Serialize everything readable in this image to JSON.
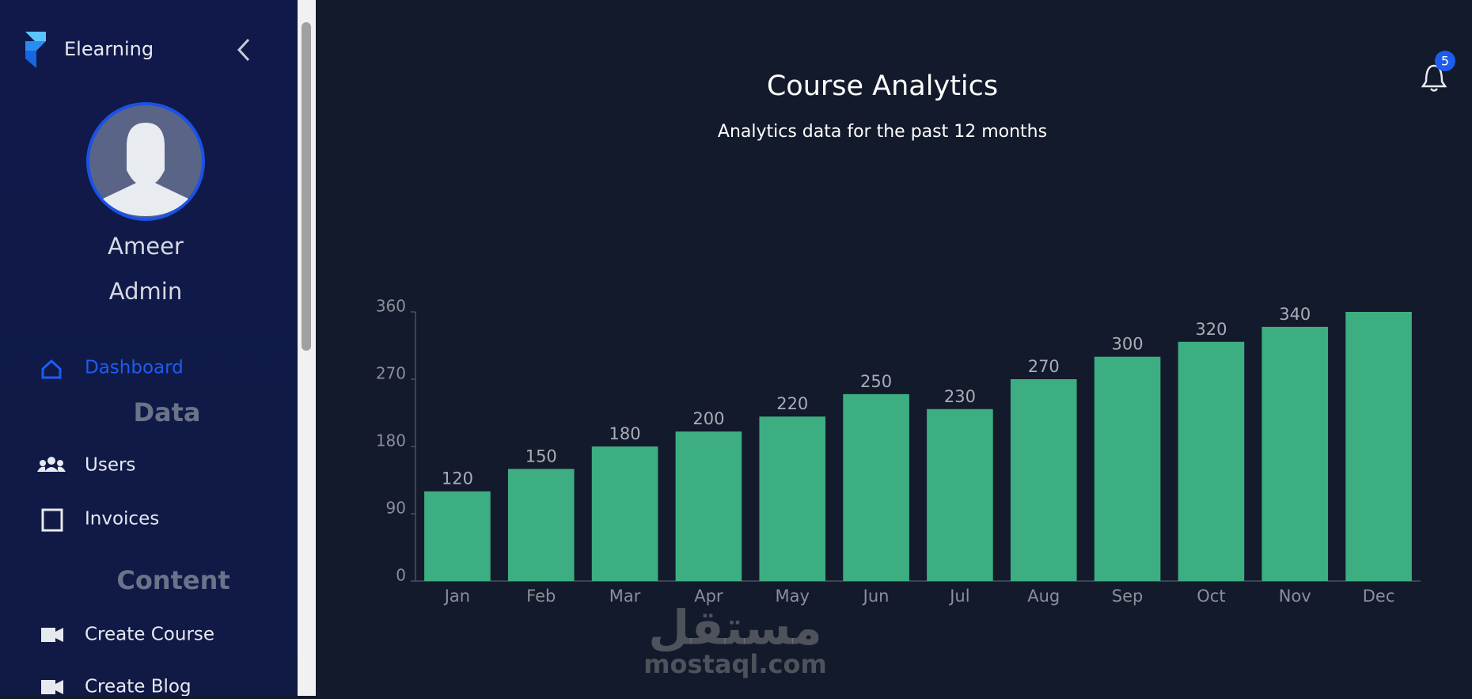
{
  "sidebar": {
    "brand": "Elearning",
    "user_name": "Ameer",
    "user_role": "Admin",
    "nav": [
      {
        "label": "Dashboard"
      },
      {
        "heading": "Data"
      },
      {
        "label": "Users"
      },
      {
        "label": "Invoices"
      },
      {
        "heading": "Content"
      },
      {
        "label": "Create Course"
      },
      {
        "label": "Create Blog"
      }
    ]
  },
  "notifications": {
    "count": "5"
  },
  "watermark": {
    "arabic": "مستقل",
    "latin": "mostaql.com"
  },
  "chart_data": {
    "type": "bar",
    "title": "Course Analytics",
    "subtitle": "Analytics data for the past 12 months",
    "categories": [
      "Jan",
      "Feb",
      "Mar",
      "Apr",
      "May",
      "Jun",
      "Jul",
      "Aug",
      "Sep",
      "Oct",
      "Nov",
      "Dec"
    ],
    "values": [
      120,
      150,
      180,
      200,
      220,
      250,
      230,
      270,
      300,
      320,
      340,
      360
    ],
    "value_labels": [
      "120",
      "150",
      "180",
      "200",
      "220",
      "250",
      "230",
      "270",
      "300",
      "320",
      "340",
      null
    ],
    "color": "#3dae81",
    "ylim": [
      0,
      360
    ],
    "yticks": [
      0,
      90,
      180,
      270,
      360
    ],
    "grid": false
  }
}
